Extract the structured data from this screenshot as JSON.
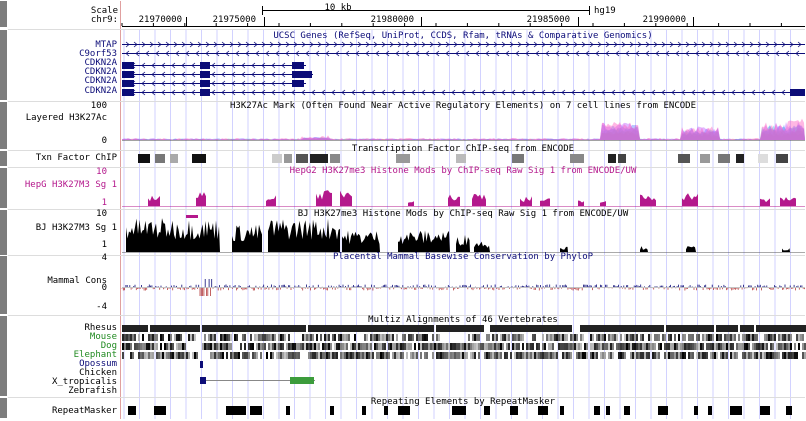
{
  "ruler": {
    "scale_label": "Scale",
    "scale_value": "10 kb",
    "assembly": "hg19",
    "chrom": "chr9:",
    "positions": [
      "21970000",
      "21975000",
      "21980000",
      "21985000",
      "21990000"
    ]
  },
  "tracks": {
    "genes": {
      "title": "UCSC Genes (RefSeq, UniProt, CCDS, Rfam, tRNAs & Comparative Genomics)",
      "labels": [
        "MTAP",
        "C9orf53",
        "CDKN2A",
        "CDKN2A",
        "CDKN2A",
        "CDKN2A"
      ]
    },
    "h3k27ac": {
      "title": "H3K27Ac Mark (Often Found Near Active Regulatory Elements) on 7 cell lines from ENCODE",
      "label": "Layered H3K27Ac",
      "max": "100",
      "min": "0"
    },
    "txn": {
      "title": "Transcription Factor ChIP-seq from ENCODE",
      "label": "Txn Factor ChIP"
    },
    "hepg2": {
      "title": "HepG2 H3K27me3 Histone Mods by ChIP-seq Raw Sig 1 from ENCODE/UW",
      "label": "HepG H3K27M3 Sg 1",
      "max": "10",
      "min": "1"
    },
    "bj": {
      "title": "BJ H3K27me3 Histone Mods by ChIP-seq Raw Sig 1 from ENCODE/UW",
      "label": "BJ H3K27M3 Sg 1",
      "max": "10",
      "min": "1"
    },
    "cons": {
      "title": "Placental Mammal Basewise Conservation by PhyloP",
      "label": "Mammal Cons",
      "max": "4",
      "zero": "0",
      "min": "-4"
    },
    "multiz": {
      "title": "Multiz Alignments of 46 Vertebrates",
      "species": [
        "Rhesus",
        "Mouse",
        "Dog",
        "Elephant",
        "Opossum",
        "Chicken",
        "X_tropicalis",
        "Zebrafish"
      ]
    },
    "rmsk": {
      "title": "Repeating Elements by RepeatMasker",
      "label": "RepeatMasker"
    }
  },
  "colors": {
    "sidebar": "#7d7d7d",
    "gene": "#0c0c78",
    "hepg2": "#b4188c",
    "grid": "#d2d2ff",
    "cons_pos": "#0c0c78",
    "cons_neg": "#b43c3c",
    "mouse_label": "#228b22",
    "dog_label": "#228b22",
    "elephant_label": "#228b22",
    "opossum_label": "#0c0c78"
  }
}
